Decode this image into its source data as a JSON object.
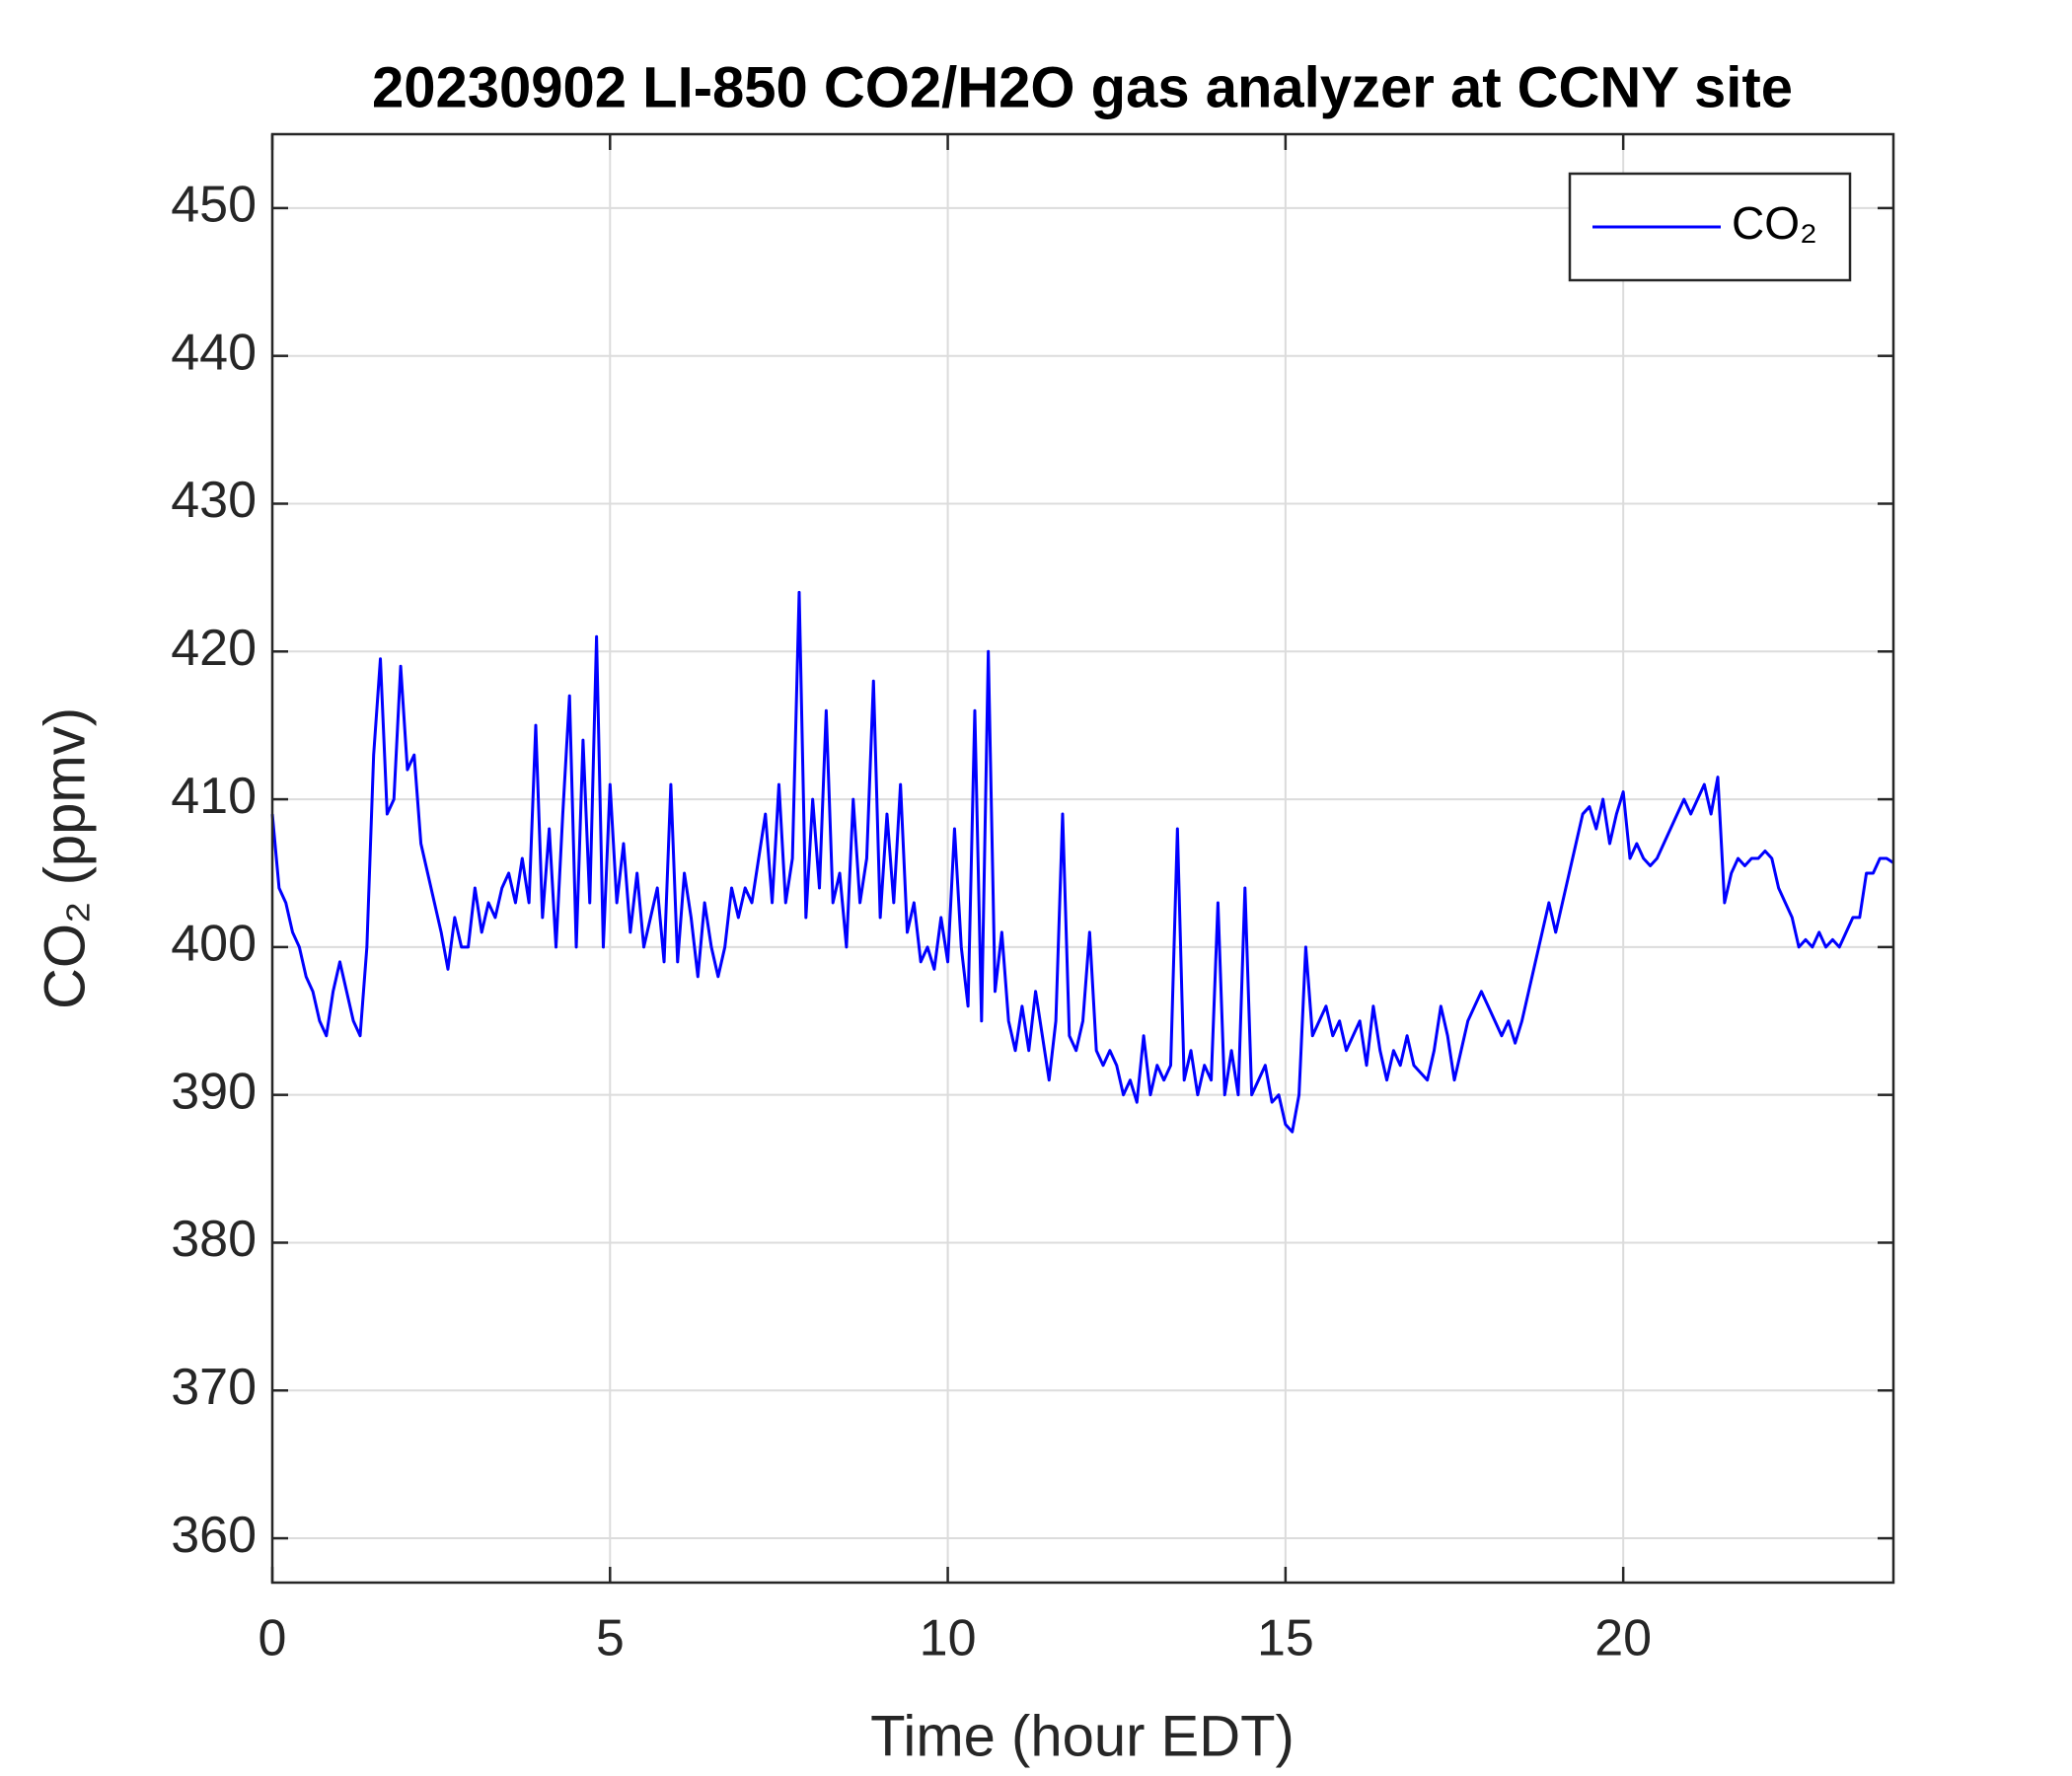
{
  "chart_data": {
    "type": "line",
    "title": "20230902 LI-850 CO2/H2O gas analyzer at CCNY site",
    "x_label": "Time (hour EDT)",
    "y_label": "CO₂ (ppmv)",
    "xlim": [
      0,
      24
    ],
    "ylim": [
      357,
      455
    ],
    "xticks": [
      0,
      5,
      10,
      15,
      20
    ],
    "yticks": [
      360,
      370,
      380,
      390,
      400,
      410,
      420,
      430,
      440,
      450
    ],
    "grid": true,
    "legend": "northeast",
    "x": [
      0,
      0.1,
      0.2,
      0.3,
      0.4,
      0.5,
      0.6,
      0.7,
      0.8,
      0.9,
      1,
      1.1,
      1.2,
      1.3,
      1.4,
      1.5,
      1.6,
      1.7,
      1.8,
      1.9,
      2,
      2.1,
      2.2,
      2.3,
      2.4,
      2.5,
      2.6,
      2.7,
      2.8,
      2.9,
      3,
      3.1,
      3.2,
      3.3,
      3.4,
      3.5,
      3.6,
      3.7,
      3.8,
      3.9,
      4,
      4.1,
      4.2,
      4.3,
      4.4,
      4.5,
      4.6,
      4.7,
      4.8,
      4.9,
      5,
      5.1,
      5.2,
      5.3,
      5.4,
      5.5,
      5.6,
      5.7,
      5.8,
      5.9,
      6,
      6.1,
      6.2,
      6.3,
      6.4,
      6.5,
      6.6,
      6.7,
      6.8,
      6.9,
      7,
      7.1,
      7.2,
      7.3,
      7.4,
      7.5,
      7.6,
      7.7,
      7.8,
      7.9,
      8,
      8.1,
      8.2,
      8.3,
      8.4,
      8.5,
      8.6,
      8.7,
      8.8,
      8.9,
      9,
      9.1,
      9.2,
      9.3,
      9.4,
      9.5,
      9.6,
      9.7,
      9.8,
      9.9,
      10,
      10.1,
      10.2,
      10.3,
      10.4,
      10.5,
      10.6,
      10.7,
      10.8,
      10.9,
      11,
      11.1,
      11.2,
      11.3,
      11.4,
      11.5,
      11.6,
      11.7,
      11.8,
      11.9,
      12,
      12.1,
      12.2,
      12.3,
      12.4,
      12.5,
      12.6,
      12.7,
      12.8,
      12.9,
      13,
      13.1,
      13.2,
      13.3,
      13.4,
      13.5,
      13.6,
      13.7,
      13.8,
      13.9,
      14,
      14.1,
      14.2,
      14.3,
      14.4,
      14.5,
      14.6,
      14.7,
      14.8,
      14.9,
      15,
      15.1,
      15.2,
      15.3,
      15.4,
      15.5,
      15.6,
      15.7,
      15.8,
      15.9,
      16,
      16.1,
      16.2,
      16.3,
      16.4,
      16.5,
      16.6,
      16.7,
      16.8,
      16.9,
      17,
      17.1,
      17.2,
      17.3,
      17.4,
      17.5,
      17.6,
      17.7,
      17.8,
      17.9,
      18,
      18.1,
      18.2,
      18.3,
      18.4,
      18.5,
      18.6,
      18.7,
      18.8,
      18.9,
      19,
      19.1,
      19.2,
      19.3,
      19.4,
      19.5,
      19.6,
      19.7,
      19.8,
      19.9,
      20,
      20.1,
      20.2,
      20.3,
      20.4,
      20.5,
      20.6,
      20.7,
      20.8,
      20.9,
      21,
      21.1,
      21.2,
      21.3,
      21.4,
      21.5,
      21.6,
      21.7,
      21.8,
      21.9,
      22,
      22.1,
      22.2,
      22.3,
      22.4,
      22.5,
      22.6,
      22.7,
      22.8,
      22.9,
      23,
      23.1,
      23.2,
      23.3,
      23.4,
      23.5,
      23.6,
      23.7,
      23.8,
      23.9,
      24
    ],
    "series": [
      {
        "name": "CO₂",
        "color": "#0000ff",
        "values": [
          409,
          404,
          403,
          401,
          400,
          398,
          397,
          395,
          394,
          397,
          399,
          397,
          395,
          394,
          400,
          413,
          419.5,
          409,
          410,
          419,
          412,
          413,
          407,
          405,
          403,
          401,
          398.5,
          402,
          400,
          400,
          404,
          401,
          403,
          402,
          404,
          405,
          403,
          406,
          403,
          415,
          402,
          408,
          400,
          409,
          417,
          400,
          414,
          403,
          421,
          400,
          411,
          403,
          407,
          401,
          405,
          400,
          402,
          404,
          399,
          411,
          399,
          405,
          402,
          398,
          403,
          400,
          398,
          400,
          404,
          402,
          404,
          403,
          406,
          409,
          403,
          411,
          403,
          406,
          424,
          402,
          410,
          404,
          416,
          403,
          405,
          400,
          410,
          403,
          406,
          418,
          402,
          409,
          403,
          411,
          401,
          403,
          399,
          400,
          398.5,
          402,
          399,
          408,
          400,
          396,
          416,
          395,
          420,
          397,
          401,
          395,
          393,
          396,
          393,
          397,
          394,
          391,
          395,
          409,
          394,
          393,
          395,
          401,
          393,
          392,
          393,
          392,
          390,
          391,
          389.5,
          394,
          390,
          392,
          391,
          392,
          408,
          391,
          393,
          390,
          392,
          391,
          403,
          390,
          393,
          390,
          404,
          390,
          391,
          392,
          389.5,
          390,
          388,
          387.5,
          390,
          400,
          394,
          395,
          396,
          394,
          395,
          393,
          394,
          395,
          392,
          396,
          393,
          391,
          393,
          392,
          394,
          392,
          391.5,
          391,
          393,
          396,
          394,
          391,
          393,
          395,
          396,
          397,
          396,
          395,
          394,
          395,
          393.5,
          395,
          397,
          399,
          401,
          403,
          401,
          403,
          405,
          407,
          409,
          409.5,
          408,
          410,
          407,
          409,
          410.5,
          406,
          407,
          406,
          405.5,
          406,
          407,
          408,
          409,
          410,
          409,
          410,
          411,
          409,
          411.5,
          403,
          405,
          406,
          405.5,
          406,
          406,
          406.5,
          406,
          404,
          403,
          402,
          400,
          400.5,
          400,
          401,
          400,
          400.5,
          400,
          401,
          402,
          402,
          405,
          405,
          406,
          406,
          405.7
        ]
      }
    ]
  }
}
